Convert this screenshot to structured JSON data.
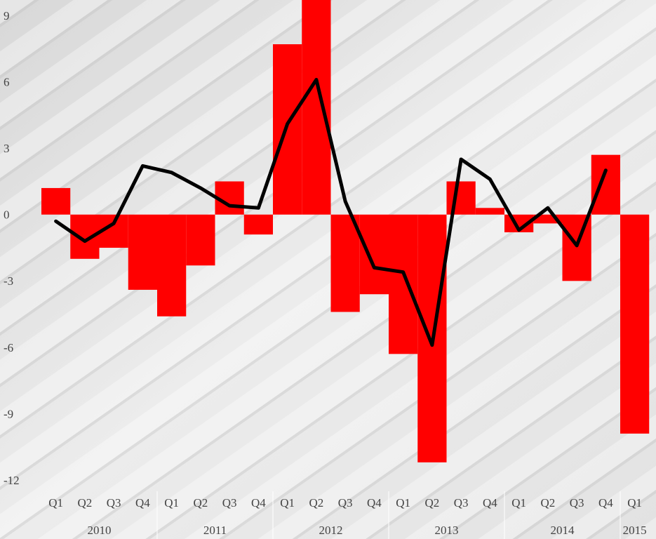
{
  "chart_data": {
    "type": "bar-line",
    "groups": [
      {
        "name": "2010",
        "categories": [
          "Q1",
          "Q2",
          "Q3",
          "Q4"
        ]
      },
      {
        "name": "2011",
        "categories": [
          "Q1",
          "Q2",
          "Q3",
          "Q4"
        ]
      },
      {
        "name": "2012",
        "categories": [
          "Q1",
          "Q2",
          "Q3",
          "Q4"
        ]
      },
      {
        "name": "2013",
        "categories": [
          "Q1",
          "Q2",
          "Q3",
          "Q4"
        ]
      },
      {
        "name": "2014",
        "categories": [
          "Q1",
          "Q2",
          "Q3",
          "Q4"
        ]
      },
      {
        "name": "2015",
        "categories": [
          "Q1"
        ]
      }
    ],
    "series": [
      {
        "type": "bar",
        "color": "#ff0000",
        "values": [
          1.2,
          -2.0,
          -1.5,
          -3.4,
          -4.6,
          -2.3,
          1.5,
          -0.9,
          7.7,
          10.2,
          -4.4,
          -3.6,
          -6.3,
          -11.2,
          1.5,
          0.3,
          -0.8,
          -0.4,
          -3.0,
          2.7,
          -9.9
        ]
      },
      {
        "type": "line",
        "color": "#000000",
        "values": [
          -0.3,
          -1.2,
          -0.4,
          2.2,
          1.9,
          1.2,
          0.4,
          0.3,
          4.1,
          6.1,
          0.6,
          -2.4,
          -2.6,
          -5.9,
          2.5,
          1.6,
          -0.7,
          0.3,
          -1.4,
          2.0,
          null
        ]
      }
    ],
    "ylim": [
      -12,
      9.7
    ],
    "yticks": [
      -12,
      -9,
      -6,
      -3,
      0,
      3,
      6,
      9
    ]
  }
}
